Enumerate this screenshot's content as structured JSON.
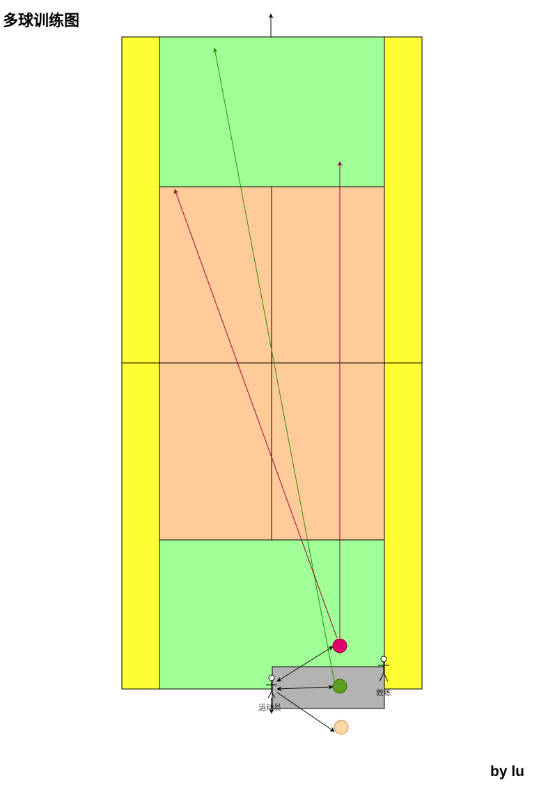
{
  "title": "多球训练图",
  "footer": "by lu",
  "labels": {
    "athlete": "运动员",
    "coach": "教练"
  },
  "colors": {
    "alley": "#ffff33",
    "back_zone": "#a0ff96",
    "front_zone": "#ffcc99",
    "coach_area": "#b3b3b3",
    "ball_magenta": "#e0006a",
    "ball_green": "#5aa020",
    "ball_peach": "#ffd6a8",
    "arrow_green": "#2f8a00",
    "arrow_crimson": "#99003a",
    "line": "#000000"
  },
  "icons": {
    "athlete": "stick-figure-icon",
    "coach": "stick-figure-icon"
  }
}
